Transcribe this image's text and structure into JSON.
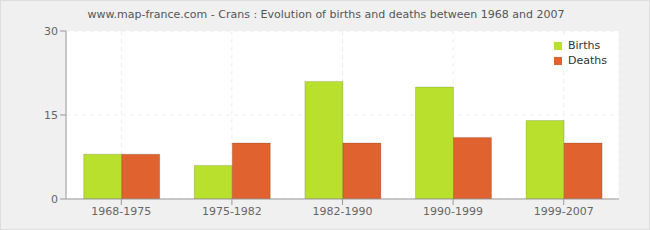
{
  "chart_data": {
    "type": "bar",
    "title": "www.map-france.com - Crans : Evolution of births and deaths between 1968 and 2007",
    "categories": [
      "1968-1975",
      "1975-1982",
      "1982-1990",
      "1990-1999",
      "1999-2007"
    ],
    "series": [
      {
        "name": "Births",
        "color": "#b8e02c",
        "values": [
          8,
          6,
          21,
          20,
          14
        ]
      },
      {
        "name": "Deaths",
        "color": "#e0622e",
        "values": [
          8,
          10,
          10,
          11,
          10
        ]
      }
    ],
    "ylim": [
      0,
      30
    ],
    "yticks": [
      0,
      15,
      30
    ],
    "grid": true,
    "legend": "top-right"
  }
}
